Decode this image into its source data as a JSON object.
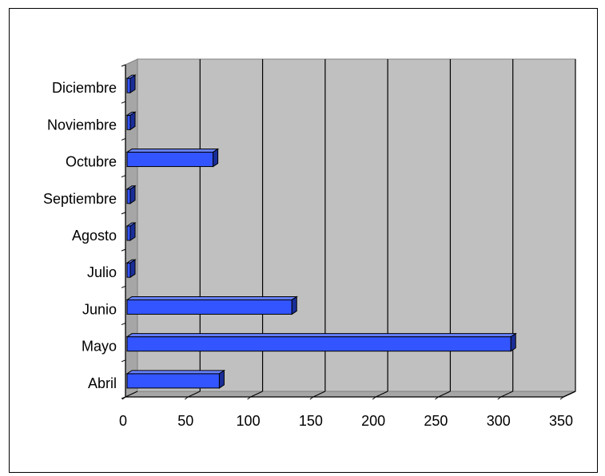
{
  "chart_data": {
    "type": "bar",
    "orientation": "horizontal",
    "style": "3d",
    "categories": [
      "Abril",
      "Mayo",
      "Junio",
      "Julio",
      "Agosto",
      "Septiembre",
      "Octubre",
      "Noviembre",
      "Diciembre"
    ],
    "values": [
      75,
      308,
      133,
      0,
      0,
      0,
      70,
      0,
      0
    ],
    "xlim": [
      0,
      350
    ],
    "x_ticks": [
      0,
      50,
      100,
      150,
      200,
      250,
      300,
      350
    ],
    "title": "",
    "xlabel": "",
    "ylabel": "",
    "grid": "vertical",
    "legend": "none",
    "colors": {
      "bar_front": "#3355FF",
      "bar_top": "#6680FF",
      "bar_side": "#1A2E99",
      "wall": "#C0C0C0",
      "floor": "#A6A6A6",
      "gridline": "#000000"
    }
  }
}
